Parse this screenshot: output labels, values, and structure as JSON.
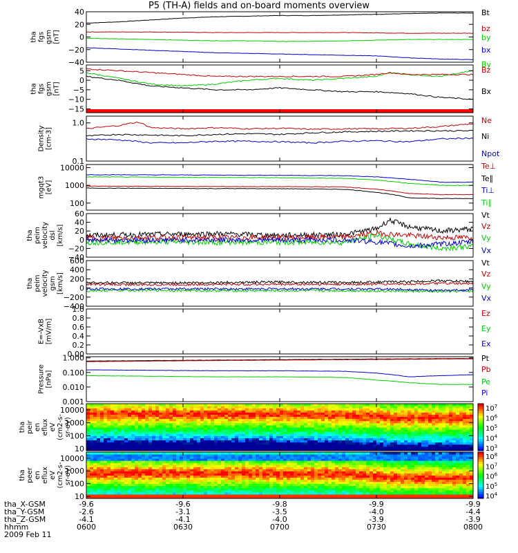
{
  "title": "P5 (TH-A) fields and on-board moments overview",
  "date_label": "2009 Feb 11",
  "footer": {
    "row_labels": [
      "tha_X-GSM",
      "tha_Y-GSM",
      "tha_Z-GSM",
      "hhmm"
    ],
    "columns": [
      {
        "x": "-9.6",
        "y": "-2.6",
        "z": "-4.1",
        "time": "0600"
      },
      {
        "x": "-9.6",
        "y": "-3.1",
        "z": "-4.1",
        "time": "0630"
      },
      {
        "x": "-9.8",
        "y": "-3.5",
        "z": "-4.0",
        "time": "0700"
      },
      {
        "x": "-9.9",
        "y": "-4.0",
        "z": "-3.9",
        "time": "0730"
      },
      {
        "x": "-9.9",
        "y": "-4.4",
        "z": "-3.9",
        "time": "0800"
      }
    ]
  },
  "colors": {
    "black": "#000000",
    "red": "#c00000",
    "green": "#00cc00",
    "blue": "#0000cc"
  },
  "chart_data": [
    {
      "type": "line",
      "ylabel": [
        "tha",
        "fgs",
        "gsm",
        "[nT]"
      ],
      "ylim": [
        -40,
        40
      ],
      "yticks": [
        {
          "v": 40,
          "t": "40"
        },
        {
          "v": 20,
          "t": "20"
        },
        {
          "v": 0,
          "t": "0"
        },
        {
          "v": -20,
          "t": "−20"
        },
        {
          "v": -40,
          "t": "−40"
        }
      ],
      "series": [
        {
          "name": "Bt",
          "color": "black",
          "x": [
            0,
            5,
            10,
            15,
            20,
            25,
            30,
            35,
            40,
            45,
            50,
            55,
            60
          ],
          "y": [
            22,
            24,
            27,
            30,
            32,
            33,
            34,
            34,
            35,
            36,
            37,
            38,
            38
          ]
        },
        {
          "name": "bz",
          "color": "red",
          "x": [
            0,
            10,
            20,
            30,
            40,
            50,
            60
          ],
          "y": [
            8,
            8,
            7,
            7,
            7,
            6,
            6
          ]
        },
        {
          "name": "by",
          "color": "green",
          "x": [
            0,
            5,
            10,
            15,
            20,
            25,
            30,
            35,
            40,
            45,
            50,
            55,
            60
          ],
          "y": [
            -2,
            -3,
            -4,
            -5,
            -6,
            -6,
            -7,
            -7,
            -6,
            -5,
            -4,
            -4,
            -4
          ]
        },
        {
          "name": "bx",
          "color": "blue",
          "x": [
            0,
            5,
            10,
            15,
            20,
            25,
            30,
            35,
            40,
            45,
            50,
            55,
            60
          ],
          "y": [
            -17,
            -19,
            -21,
            -23,
            -25,
            -26,
            -27,
            -28,
            -29,
            -30,
            -33,
            -35,
            -36
          ]
        }
      ]
    },
    {
      "type": "line",
      "ylabel": [
        "tha",
        "fgs",
        "gsm",
        "[nT]"
      ],
      "ylim": [
        -17,
        8
      ],
      "yticks": [
        {
          "v": 5,
          "t": "5"
        },
        {
          "v": 0,
          "t": "0"
        },
        {
          "v": -5,
          "t": "−5"
        },
        {
          "v": -10,
          "t": "−10"
        },
        {
          "v": -15,
          "t": "−15"
        }
      ],
      "series": [
        {
          "name": "By",
          "color": "green",
          "x": [
            0,
            5,
            10,
            15,
            20,
            25,
            30,
            35,
            40,
            45,
            47,
            50,
            55,
            60
          ],
          "y": [
            4,
            1,
            -2,
            -3,
            -2,
            0,
            1,
            0,
            1,
            2,
            4,
            3,
            2,
            5
          ]
        },
        {
          "name": "Bz",
          "color": "red",
          "x": [
            0,
            5,
            10,
            15,
            20,
            25,
            30,
            35,
            40,
            45,
            47,
            50,
            55,
            60
          ],
          "y": [
            6,
            5,
            4,
            3,
            2,
            2,
            2,
            2,
            2,
            3,
            4,
            3,
            3,
            3
          ]
        },
        {
          "name": "Bx",
          "color": "black",
          "x": [
            0,
            5,
            10,
            15,
            20,
            25,
            30,
            35,
            40,
            45,
            50,
            55,
            60
          ],
          "y": [
            2,
            0,
            -3,
            -4,
            -5,
            -5,
            -4,
            -5,
            -6,
            -6,
            -7,
            -9,
            -10
          ]
        }
      ]
    },
    {
      "type": "line",
      "ylabel": [
        "Density",
        "[cm-3]"
      ],
      "ylim_log": [
        0.1,
        1.5
      ],
      "yticks": [
        {
          "v": 1.0,
          "t": "1.0"
        },
        {
          "v": 0.1,
          "t": "0.1"
        }
      ],
      "series": [
        {
          "name": "Ne",
          "color": "red",
          "x": [
            0,
            5,
            8,
            10,
            15,
            20,
            25,
            30,
            35,
            40,
            45,
            50,
            55,
            60
          ],
          "y": [
            0.7,
            0.85,
            1.05,
            0.75,
            0.7,
            0.75,
            0.7,
            0.72,
            0.68,
            0.7,
            0.7,
            0.72,
            0.8,
            0.95
          ]
        },
        {
          "name": "Ni",
          "color": "black",
          "x": [
            0,
            5,
            10,
            15,
            20,
            25,
            30,
            35,
            40,
            45,
            50,
            55,
            60
          ],
          "y": [
            0.45,
            0.5,
            0.48,
            0.46,
            0.5,
            0.52,
            0.5,
            0.55,
            0.58,
            0.6,
            0.62,
            0.62,
            0.62
          ]
        },
        {
          "name": "Npot",
          "color": "blue",
          "x": [
            0,
            5,
            10,
            15,
            20,
            25,
            30,
            35,
            40,
            45,
            50,
            55,
            60
          ],
          "y": [
            0.38,
            0.36,
            0.3,
            0.3,
            0.33,
            0.33,
            0.32,
            0.3,
            0.33,
            0.34,
            0.32,
            0.38,
            0.4
          ]
        }
      ]
    },
    {
      "type": "line",
      "ylabel": [
        "mgqt3",
        "[eV]"
      ],
      "ylim_log": [
        40,
        15000
      ],
      "yticks": [
        {
          "v": 10000,
          "t": "10000"
        },
        {
          "v": 1000,
          "t": "1000"
        },
        {
          "v": 100,
          "t": "100"
        }
      ],
      "series": [
        {
          "name": "Te⊥",
          "color": "red",
          "x": [
            0,
            10,
            20,
            30,
            40,
            45,
            50,
            55,
            60
          ],
          "y": [
            900,
            880,
            860,
            850,
            820,
            600,
            350,
            300,
            300
          ]
        },
        {
          "name": "Te∥",
          "color": "black",
          "x": [
            0,
            10,
            20,
            30,
            40,
            45,
            50,
            55,
            60
          ],
          "y": [
            700,
            680,
            660,
            650,
            600,
            400,
            200,
            180,
            180
          ]
        },
        {
          "name": "Ti⊥",
          "color": "blue",
          "x": [
            0,
            10,
            20,
            30,
            40,
            45,
            50,
            55,
            60
          ],
          "y": [
            4000,
            3900,
            3800,
            3700,
            3500,
            3000,
            2200,
            1500,
            1500
          ]
        },
        {
          "name": "Ti∥",
          "color": "green",
          "x": [
            0,
            10,
            20,
            30,
            40,
            45,
            50,
            55,
            60
          ],
          "y": [
            3000,
            2900,
            2800,
            2700,
            2500,
            2000,
            1300,
            1000,
            1000
          ]
        }
      ]
    },
    {
      "type": "line",
      "ylabel": [
        "tha",
        "peim",
        "velocity",
        "dsl",
        "[km/s]"
      ],
      "ylim": [
        -40,
        60
      ],
      "yticks": [
        {
          "v": 60,
          "t": "60"
        },
        {
          "v": 40,
          "t": "40"
        },
        {
          "v": 20,
          "t": "20"
        },
        {
          "v": 0,
          "t": "0"
        },
        {
          "v": -20,
          "t": "−20"
        },
        {
          "v": -40,
          "t": "−40"
        }
      ],
      "series": [
        {
          "name": "Vt",
          "color": "black",
          "x": [
            0,
            10,
            20,
            30,
            40,
            45,
            47,
            50,
            55,
            60
          ],
          "y": [
            10,
            12,
            14,
            10,
            12,
            25,
            45,
            30,
            20,
            25
          ]
        },
        {
          "name": "Vz",
          "color": "red",
          "x": [
            0,
            10,
            20,
            30,
            40,
            45,
            50,
            55,
            60
          ],
          "y": [
            4,
            5,
            5,
            5,
            6,
            15,
            10,
            5,
            5
          ]
        },
        {
          "name": "Vy",
          "color": "green",
          "x": [
            0,
            10,
            20,
            30,
            40,
            45,
            50,
            55,
            60
          ],
          "y": [
            -6,
            -5,
            -6,
            -6,
            -6,
            10,
            -10,
            -20,
            -15
          ]
        },
        {
          "name": "Vx",
          "color": "blue",
          "x": [
            0,
            10,
            20,
            30,
            40,
            45,
            50,
            55,
            60
          ],
          "y": [
            0,
            -1,
            0,
            -1,
            0,
            -5,
            -15,
            -10,
            -5
          ]
        }
      ]
    },
    {
      "type": "line",
      "ylabel": [
        "tha",
        "peim",
        "velocity",
        "gsm",
        "[km/s]"
      ],
      "ylim": [
        -400,
        600
      ],
      "yticks": [
        {
          "v": 600,
          "t": "600"
        },
        {
          "v": 400,
          "t": "400"
        },
        {
          "v": 200,
          "t": "200"
        },
        {
          "v": 0,
          "t": "0"
        },
        {
          "v": -200,
          "t": "−200"
        },
        {
          "v": -400,
          "t": "−400"
        }
      ],
      "series": [
        {
          "name": "Vt",
          "color": "black",
          "x": [
            0,
            10,
            20,
            30,
            40,
            50,
            55,
            60
          ],
          "y": [
            120,
            110,
            120,
            130,
            120,
            140,
            160,
            140
          ]
        },
        {
          "name": "Vz",
          "color": "red",
          "x": [
            0,
            10,
            20,
            30,
            40,
            50,
            55,
            60
          ],
          "y": [
            80,
            70,
            80,
            80,
            80,
            90,
            100,
            90
          ]
        },
        {
          "name": "Vy",
          "color": "green",
          "x": [
            0,
            10,
            20,
            30,
            40,
            50,
            55,
            60
          ],
          "y": [
            -60,
            -50,
            -60,
            -60,
            -60,
            -70,
            -80,
            -70
          ]
        },
        {
          "name": "Vx",
          "color": "blue",
          "x": [
            0,
            10,
            20,
            30,
            40,
            50,
            55,
            60
          ],
          "y": [
            -20,
            -20,
            -20,
            -20,
            -20,
            -30,
            -60,
            -40
          ]
        }
      ]
    },
    {
      "type": "line",
      "ylabel": [
        "E=-VxB",
        "[mV/m]"
      ],
      "ylim": [
        0,
        1
      ],
      "yticks": [
        {
          "v": 1.0,
          "t": "1.0"
        },
        {
          "v": 0.8,
          "t": "0.8"
        },
        {
          "v": 0.6,
          "t": "0.6"
        },
        {
          "v": 0.4,
          "t": "0.4"
        },
        {
          "v": 0.2,
          "t": "0.2"
        },
        {
          "v": 0.0,
          "t": "0.00"
        }
      ],
      "series": [
        {
          "name": "Ez",
          "color": "red",
          "x": [],
          "y": []
        },
        {
          "name": "Ey",
          "color": "green",
          "x": [],
          "y": []
        },
        {
          "name": "Ex",
          "color": "blue",
          "x": [],
          "y": []
        }
      ]
    },
    {
      "type": "line",
      "ylabel": [
        "Pressure",
        "[nPa]"
      ],
      "ylim_log": [
        0.001,
        1.2
      ],
      "yticks": [
        {
          "v": 1,
          "t": "1.000"
        },
        {
          "v": 0.1,
          "t": "0.100"
        },
        {
          "v": 0.01,
          "t": "0.010"
        },
        {
          "v": 0.001,
          "t": "0.001"
        }
      ],
      "series": [
        {
          "name": "Pt",
          "color": "black",
          "x": [
            0,
            10,
            20,
            30,
            40,
            50,
            60
          ],
          "y": [
            0.6,
            0.65,
            0.7,
            0.75,
            0.8,
            0.85,
            0.9
          ]
        },
        {
          "name": "Pb",
          "color": "red",
          "x": [
            0,
            10,
            20,
            30,
            40,
            50,
            60
          ],
          "y": [
            0.55,
            0.6,
            0.65,
            0.7,
            0.75,
            0.8,
            0.85
          ]
        },
        {
          "name": "Pe",
          "color": "green",
          "x": [
            0,
            10,
            20,
            30,
            40,
            45,
            50,
            55,
            60
          ],
          "y": [
            0.06,
            0.055,
            0.05,
            0.05,
            0.045,
            0.03,
            0.02,
            0.015,
            0.015
          ]
        },
        {
          "name": "Pi",
          "color": "blue",
          "x": [
            0,
            10,
            20,
            30,
            40,
            45,
            50,
            55,
            60
          ],
          "y": [
            0.15,
            0.14,
            0.13,
            0.13,
            0.12,
            0.09,
            0.05,
            0.06,
            0.07
          ]
        }
      ]
    },
    {
      "type": "heatmap",
      "ylabel": [
        "tha",
        "peir",
        "en",
        "eflux",
        "eV",
        "(cm2-s-",
        "sr-eV)"
      ],
      "ylim_log": [
        7,
        30000
      ],
      "yticks": [
        {
          "v": 10000,
          "t": "10000"
        },
        {
          "v": 1000,
          "t": "1000"
        },
        {
          "v": 100,
          "t": "100"
        },
        {
          "v": 10,
          "t": "10"
        }
      ],
      "colorbar": [
        {
          "t": "10",
          "sup": "7"
        },
        {
          "t": "10",
          "sup": "6"
        },
        {
          "t": "10",
          "sup": "5"
        },
        {
          "t": "10",
          "sup": "4"
        },
        {
          "t": "10",
          "sup": "3"
        }
      ],
      "colorbar_range": [
        3,
        7
      ],
      "peak_energy_eV": [
        {
          "x": 0,
          "v": 5000
        },
        {
          "x": 25,
          "v": 5000
        },
        {
          "x": 40,
          "v": 4000
        },
        {
          "x": 47,
          "v": 2500
        },
        {
          "x": 60,
          "v": 2500
        }
      ]
    },
    {
      "type": "heatmap",
      "ylabel": [
        "tha",
        "peer",
        "en",
        "eflux",
        "eV",
        "(cm2-s-",
        "sr-eV)"
      ],
      "ylim_log": [
        7,
        30000
      ],
      "yticks": [
        {
          "v": 10000,
          "t": "10000"
        },
        {
          "v": 1000,
          "t": "1000"
        },
        {
          "v": 100,
          "t": "100"
        },
        {
          "v": 10,
          "t": "10"
        }
      ],
      "colorbar": [
        {
          "t": "10",
          "sup": "8"
        },
        {
          "t": "10",
          "sup": "7"
        },
        {
          "t": "10",
          "sup": "6"
        },
        {
          "t": "10",
          "sup": "5"
        },
        {
          "t": "10",
          "sup": "4"
        }
      ],
      "colorbar_range": [
        4,
        8
      ],
      "peak_energy_eV": [
        {
          "x": 0,
          "v": 700
        },
        {
          "x": 25,
          "v": 700
        },
        {
          "x": 40,
          "v": 600
        },
        {
          "x": 47,
          "v": 300
        },
        {
          "x": 60,
          "v": 250
        }
      ]
    }
  ]
}
